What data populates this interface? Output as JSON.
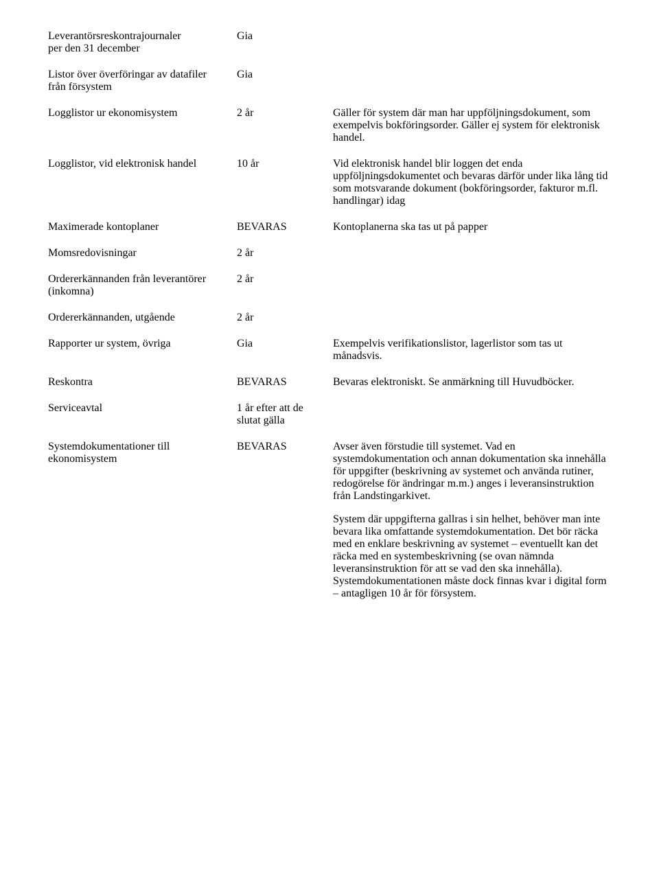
{
  "page": {
    "background_color": "#ffffff",
    "text_color": "#000000",
    "font_family": "Times New Roman",
    "base_font_size_pt": 12
  },
  "rows": [
    {
      "c1_l1": "Leverantörsreskontrajournaler",
      "c1_l2": "per den 31 december",
      "c2": "Gia",
      "c3_p1": ""
    },
    {
      "c1_l1": "Listor över överföringar av datafiler",
      "c1_l2": "från försystem",
      "c2": "Gia",
      "c3_p1": ""
    },
    {
      "c1_l1": "Logglistor ur ekonomisystem",
      "c1_l2": "",
      "c2": "2 år",
      "c3_p1": "Gäller för system där man har uppföljnings­dokument, som exempelvis bokföringsorder. Gäller ej system för elektronisk handel."
    },
    {
      "c1_l1": "Logglistor, vid elektronisk handel",
      "c1_l2": "",
      "c2": "10 år",
      "c3_p1": "Vid elektronisk handel blir loggen det enda uppföljningsdokumentet och bevaras därför under lika lång tid som motsvarande dokument (bokföringsorder, fakturor m.fl. handlingar) idag"
    },
    {
      "c1_l1": "Maximerade kontoplaner",
      "c1_l2": "",
      "c2": "BEVARAS",
      "c3_p1": "Kontoplanerna ska tas ut på papper"
    },
    {
      "c1_l1": "Momsredovisningar",
      "c1_l2": "",
      "c2": "2 år",
      "c3_p1": ""
    },
    {
      "c1_l1": "Ordererkännanden från leverantörer",
      "c1_l2": "(inkomna)",
      "c2": "2 år",
      "c3_p1": ""
    },
    {
      "c1_l1": "Ordererkännanden, utgående",
      "c1_l2": "",
      "c2": "2 år",
      "c3_p1": ""
    },
    {
      "c1_l1": "Rapporter ur system, övriga",
      "c1_l2": "",
      "c2": "Gia",
      "c3_p1": "Exempelvis verifikationslistor, lagerlistor som tas ut månadsvis."
    },
    {
      "c1_l1": "Reskontra",
      "c1_l2": "",
      "c2": "BEVARAS",
      "c3_p1": "Bevaras elektroniskt. Se anmärkning till Huvudböcker."
    },
    {
      "c1_l1": "Serviceavtal",
      "c1_l2": "",
      "c2": "1 år efter att de slutat gälla",
      "c3_p1": ""
    },
    {
      "c1_l1": "Systemdokumentationer till",
      "c1_l2": "ekonomisystem",
      "c2": "BEVARAS",
      "c3_p1": "Avser även förstudie till systemet. Vad en systemdokumentation och annan dokumenta­tion ska innehålla för uppgifter (beskrivning av systemet och använda rutiner, redogörelse för ändringar m.m.) anges i leveransinstruktion från Landstingarkivet.",
      "c3_p2": "System där uppgifterna gallras i sin helhet, behöver man inte bevara lika omfattande systemdokumentation. Det bör räcka med en enklare beskrivning av systemet – eventuellt kan det räcka med en systembeskrivning (se ovan nämnda leveransinstruktion för att se vad den ska innehålla). Systemdokumentationen måste dock finnas kvar i digital form – antagligen 10 år för försystem."
    }
  ]
}
